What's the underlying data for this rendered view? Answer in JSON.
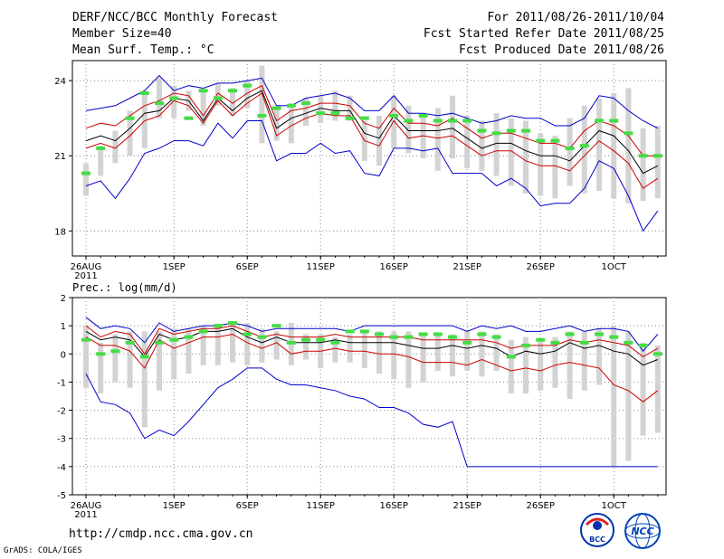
{
  "header": {
    "title": "DERF/NCC/BCC Monthly Forecast",
    "member_size": "Member Size=40",
    "variable": "Mean Surf. Temp.: °C",
    "forecast_for": "For 2011/08/26-2011/10/04",
    "fcst_started": "Fcst Started Refer Date 2011/08/25",
    "fcst_produced": "Fcst Produced Date 2011/08/26"
  },
  "footer": {
    "url": "http://cmdp.ncc.cma.gov.cn",
    "credit": "GrADS: COLA/IGES",
    "logo_bcc": "BCC",
    "logo_ncc": "NCC"
  },
  "colors": {
    "max_min": "#0000cc",
    "spread": "#cc0000",
    "mean": "#000000",
    "member_bar": "#d3d3d3",
    "observed_marker": "#44dd44"
  },
  "chart_data": [
    {
      "type": "line",
      "title": "Mean Surf. Temp.: °C",
      "ylim": [
        17,
        24.8
      ],
      "yticks": [
        18,
        21,
        24
      ],
      "x": [
        1,
        2,
        3,
        4,
        5,
        6,
        7,
        8,
        9,
        10,
        11,
        12,
        13,
        14,
        15,
        16,
        17,
        18,
        19,
        20,
        21,
        22,
        23,
        24,
        25,
        26,
        27,
        28,
        29,
        30,
        31,
        32,
        33,
        34,
        35,
        36,
        37,
        38,
        39,
        40
      ],
      "xticks": [
        {
          "day": 1,
          "label": "26AUG",
          "sub": "2011"
        },
        {
          "day": 7,
          "label": "1SEP"
        },
        {
          "day": 12,
          "label": "6SEP"
        },
        {
          "day": 17,
          "label": "11SEP"
        },
        {
          "day": 22,
          "label": "16SEP"
        },
        {
          "day": 27,
          "label": "21SEP"
        },
        {
          "day": 32,
          "label": "26SEP"
        },
        {
          "day": 37,
          "label": "1OCT"
        }
      ],
      "member_range": {
        "low": [
          19.4,
          20.2,
          20.7,
          21.0,
          21.3,
          22.5,
          22.5,
          22.8,
          22.2,
          23.0,
          22.6,
          22.9,
          21.5,
          21.6,
          21.5,
          22.2,
          22.3,
          22.4,
          22.4,
          20.8,
          20.6,
          21.3,
          21.1,
          20.9,
          20.4,
          20.9,
          20.5,
          20.4,
          20.2,
          19.8,
          19.5,
          19.4,
          19.3,
          19.8,
          19.5,
          19.6,
          19.3,
          19.1,
          19.2,
          19.3
        ],
        "high": [
          20.7,
          21.4,
          22.0,
          22.8,
          23.5,
          24.1,
          23.8,
          23.6,
          23.6,
          23.9,
          23.7,
          24.0,
          24.6,
          23.0,
          23.1,
          23.3,
          23.4,
          23.6,
          23.4,
          22.4,
          22.6,
          23.4,
          23.0,
          22.7,
          22.9,
          23.4,
          22.6,
          22.4,
          22.7,
          22.5,
          22.4,
          21.9,
          21.8,
          22.5,
          23.0,
          23.3,
          23.5,
          23.7,
          22.1,
          22.2
        ]
      },
      "series": [
        {
          "name": "Maximum",
          "color": "#0000cc",
          "values": [
            22.8,
            22.9,
            23.0,
            23.3,
            23.6,
            24.2,
            23.6,
            23.8,
            23.7,
            23.9,
            23.9,
            24.0,
            24.1,
            23.0,
            23.0,
            23.3,
            23.4,
            23.5,
            23.3,
            22.8,
            22.8,
            23.4,
            22.7,
            22.7,
            22.6,
            22.7,
            22.5,
            22.3,
            22.4,
            22.6,
            22.5,
            22.5,
            22.2,
            22.2,
            22.5,
            23.4,
            23.3,
            22.8,
            22.4,
            22.1
          ]
        },
        {
          "name": "Mean + Spread",
          "color": "#cc0000",
          "values": [
            22.1,
            22.3,
            22.2,
            22.6,
            23.0,
            23.2,
            23.5,
            23.4,
            22.6,
            23.5,
            23.1,
            23.5,
            23.8,
            22.4,
            22.8,
            22.9,
            23.1,
            23.1,
            23.0,
            22.3,
            22.1,
            22.9,
            22.3,
            22.3,
            22.2,
            22.5,
            22.1,
            21.7,
            21.9,
            21.9,
            21.7,
            21.5,
            21.5,
            21.3,
            22.0,
            22.4,
            22.2,
            21.8,
            21.0,
            21.0
          ]
        },
        {
          "name": "Ensemble Mean",
          "color": "#000000",
          "values": [
            21.6,
            21.8,
            21.6,
            22.1,
            22.7,
            22.8,
            23.3,
            23.2,
            22.4,
            23.3,
            22.8,
            23.3,
            23.6,
            22.1,
            22.5,
            22.7,
            22.9,
            22.8,
            22.8,
            21.9,
            21.7,
            22.6,
            22.0,
            22.0,
            22.0,
            22.1,
            21.7,
            21.3,
            21.5,
            21.5,
            21.2,
            21.0,
            21.0,
            20.8,
            21.4,
            22.0,
            21.8,
            21.2,
            20.3,
            20.6
          ]
        },
        {
          "name": "Mean - Spread",
          "color": "#cc0000",
          "values": [
            21.3,
            21.5,
            21.3,
            21.8,
            22.4,
            22.6,
            23.2,
            23.0,
            22.3,
            23.2,
            22.6,
            23.1,
            23.5,
            21.8,
            22.2,
            22.5,
            22.7,
            22.6,
            22.6,
            21.6,
            21.4,
            22.4,
            21.7,
            21.8,
            21.7,
            21.8,
            21.4,
            21.0,
            21.2,
            21.2,
            20.8,
            20.6,
            20.6,
            20.4,
            21.0,
            21.6,
            21.2,
            20.7,
            19.7,
            20.1
          ]
        },
        {
          "name": "Minimum",
          "color": "#0000cc",
          "values": [
            19.8,
            20.0,
            19.3,
            20.1,
            21.1,
            21.3,
            21.6,
            21.6,
            21.4,
            22.3,
            21.7,
            22.4,
            22.4,
            20.8,
            21.1,
            21.1,
            21.5,
            21.1,
            21.2,
            20.3,
            20.2,
            21.3,
            21.3,
            21.2,
            21.3,
            20.3,
            20.3,
            20.3,
            19.8,
            20.1,
            19.7,
            19.0,
            19.1,
            19.1,
            19.7,
            20.8,
            20.5,
            19.4,
            18.0,
            18.8
          ]
        }
      ],
      "observed": [
        20.3,
        21.3,
        null,
        22.5,
        23.5,
        23.1,
        23.3,
        22.5,
        23.6,
        23.3,
        23.6,
        23.8,
        22.6,
        22.9,
        23.0,
        23.1,
        22.7,
        22.7,
        22.5,
        22.5,
        null,
        22.6,
        22.4,
        22.6,
        22.4,
        22.4,
        22.4,
        22.0,
        21.9,
        22.0,
        22.0,
        21.6,
        21.6,
        21.3,
        21.4,
        22.4,
        22.4,
        21.9,
        21.0,
        21.0
      ]
    },
    {
      "type": "line",
      "title": "Prec.: log(mm/d)",
      "ylim": [
        -5,
        2
      ],
      "yticks": [
        -5,
        -4,
        -3,
        -2,
        -1,
        0,
        1,
        2
      ],
      "x": [
        1,
        2,
        3,
        4,
        5,
        6,
        7,
        8,
        9,
        10,
        11,
        12,
        13,
        14,
        15,
        16,
        17,
        18,
        19,
        20,
        21,
        22,
        23,
        24,
        25,
        26,
        27,
        28,
        29,
        30,
        31,
        32,
        33,
        34,
        35,
        36,
        37,
        38,
        39,
        40
      ],
      "xticks": [
        {
          "day": 1,
          "label": "26AUG",
          "sub": "2011"
        },
        {
          "day": 7,
          "label": "1SEP"
        },
        {
          "day": 12,
          "label": "6SEP"
        },
        {
          "day": 17,
          "label": "11SEP"
        },
        {
          "day": 22,
          "label": "16SEP"
        },
        {
          "day": 27,
          "label": "21SEP"
        },
        {
          "day": 32,
          "label": "26SEP"
        },
        {
          "day": 37,
          "label": "1OCT"
        }
      ],
      "member_range": {
        "low": [
          -1.2,
          -1.4,
          -1.0,
          -1.2,
          -2.6,
          -1.3,
          -0.9,
          -0.7,
          -0.4,
          -0.4,
          -0.3,
          -0.4,
          -0.3,
          -0.2,
          -0.4,
          -0.2,
          -0.5,
          -0.3,
          -0.3,
          -0.5,
          -0.7,
          -0.9,
          -1.2,
          -1.0,
          -0.6,
          -0.8,
          -0.6,
          -0.8,
          -0.6,
          -1.4,
          -1.4,
          -1.3,
          -1.2,
          -1.6,
          -1.3,
          -1.1,
          -4.0,
          -3.8,
          -2.9,
          -2.8
        ],
        "high": [
          1.0,
          0.4,
          0.7,
          0.8,
          0.8,
          0.8,
          0.9,
          0.9,
          1.0,
          1.0,
          1.1,
          1.1,
          0.9,
          0.8,
          1.1,
          0.7,
          0.7,
          0.6,
          0.7,
          0.8,
          0.8,
          0.8,
          0.8,
          0.7,
          0.7,
          0.7,
          0.8,
          0.8,
          0.7,
          0.5,
          0.6,
          0.5,
          0.6,
          0.8,
          0.8,
          0.9,
          1.0,
          0.8,
          0.4,
          0.3
        ]
      },
      "series": [
        {
          "name": "Maximum",
          "color": "#0000cc",
          "values": [
            1.3,
            0.9,
            1.0,
            0.9,
            0.4,
            1.1,
            0.8,
            0.9,
            1.0,
            1.0,
            1.1,
            1.0,
            0.8,
            0.9,
            0.9,
            0.9,
            0.9,
            0.9,
            0.8,
            1.0,
            1.0,
            1.0,
            1.0,
            1.0,
            1.0,
            1.0,
            0.8,
            1.0,
            0.9,
            1.0,
            0.8,
            0.8,
            0.9,
            1.0,
            0.8,
            0.9,
            0.9,
            0.8,
            0.1,
            0.7
          ]
        },
        {
          "name": "Mean + Spread",
          "color": "#cc0000",
          "values": [
            1.0,
            0.6,
            0.8,
            0.7,
            0.0,
            0.9,
            0.7,
            0.8,
            0.9,
            0.9,
            1.0,
            0.8,
            0.6,
            0.7,
            0.6,
            0.6,
            0.6,
            0.7,
            0.6,
            0.6,
            0.6,
            0.6,
            0.6,
            0.5,
            0.5,
            0.5,
            0.5,
            0.5,
            0.4,
            0.2,
            0.3,
            0.3,
            0.3,
            0.5,
            0.4,
            0.5,
            0.4,
            0.3,
            -0.1,
            0.2
          ]
        },
        {
          "name": "Ensemble Mean",
          "color": "#000000",
          "values": [
            0.8,
            0.5,
            0.6,
            0.5,
            -0.1,
            0.7,
            0.5,
            0.6,
            0.8,
            0.8,
            0.9,
            0.6,
            0.4,
            0.6,
            0.4,
            0.4,
            0.4,
            0.5,
            0.4,
            0.4,
            0.4,
            0.4,
            0.3,
            0.2,
            0.2,
            0.3,
            0.2,
            0.3,
            0.2,
            -0.1,
            0.1,
            0.0,
            0.1,
            0.4,
            0.2,
            0.3,
            0.1,
            0.0,
            -0.4,
            -0.2
          ]
        },
        {
          "name": "Mean - Spread",
          "color": "#cc0000",
          "values": [
            0.6,
            0.3,
            0.3,
            0.1,
            -0.5,
            0.5,
            0.2,
            0.4,
            0.6,
            0.6,
            0.7,
            0.4,
            0.2,
            0.4,
            0.0,
            0.1,
            0.1,
            0.2,
            0.1,
            0.1,
            0.0,
            0.0,
            -0.1,
            -0.3,
            -0.3,
            -0.3,
            -0.4,
            -0.2,
            -0.4,
            -0.6,
            -0.5,
            -0.6,
            -0.4,
            -0.3,
            -0.4,
            -0.5,
            -1.1,
            -1.3,
            -1.7,
            -1.3
          ]
        },
        {
          "name": "Minimum",
          "color": "#0000cc",
          "values": [
            -0.7,
            -1.7,
            -1.8,
            -2.1,
            -3.0,
            -2.7,
            -2.9,
            -2.4,
            -1.8,
            -1.2,
            -0.9,
            -0.5,
            -0.5,
            -0.9,
            -1.1,
            -1.1,
            -1.2,
            -1.3,
            -1.5,
            -1.6,
            -1.9,
            -1.9,
            -2.1,
            -2.5,
            -2.6,
            -2.4,
            -4.0,
            -4.0,
            -4.0,
            -4.0,
            -4.0,
            -4.0,
            -4.0,
            -4.0,
            -4.0,
            -4.0,
            -4.0,
            -4.0,
            -4.0,
            -4.0
          ]
        }
      ],
      "observed": [
        0.5,
        0.0,
        0.1,
        0.4,
        -0.1,
        0.4,
        0.5,
        0.6,
        0.8,
        1.0,
        1.1,
        0.7,
        0.6,
        1.0,
        0.4,
        0.5,
        0.5,
        0.4,
        0.8,
        0.8,
        0.7,
        0.6,
        0.6,
        0.7,
        0.7,
        0.6,
        0.4,
        0.7,
        0.6,
        -0.1,
        0.3,
        0.5,
        0.4,
        0.7,
        0.4,
        0.7,
        0.6,
        0.4,
        0.3,
        0.0
      ]
    }
  ]
}
